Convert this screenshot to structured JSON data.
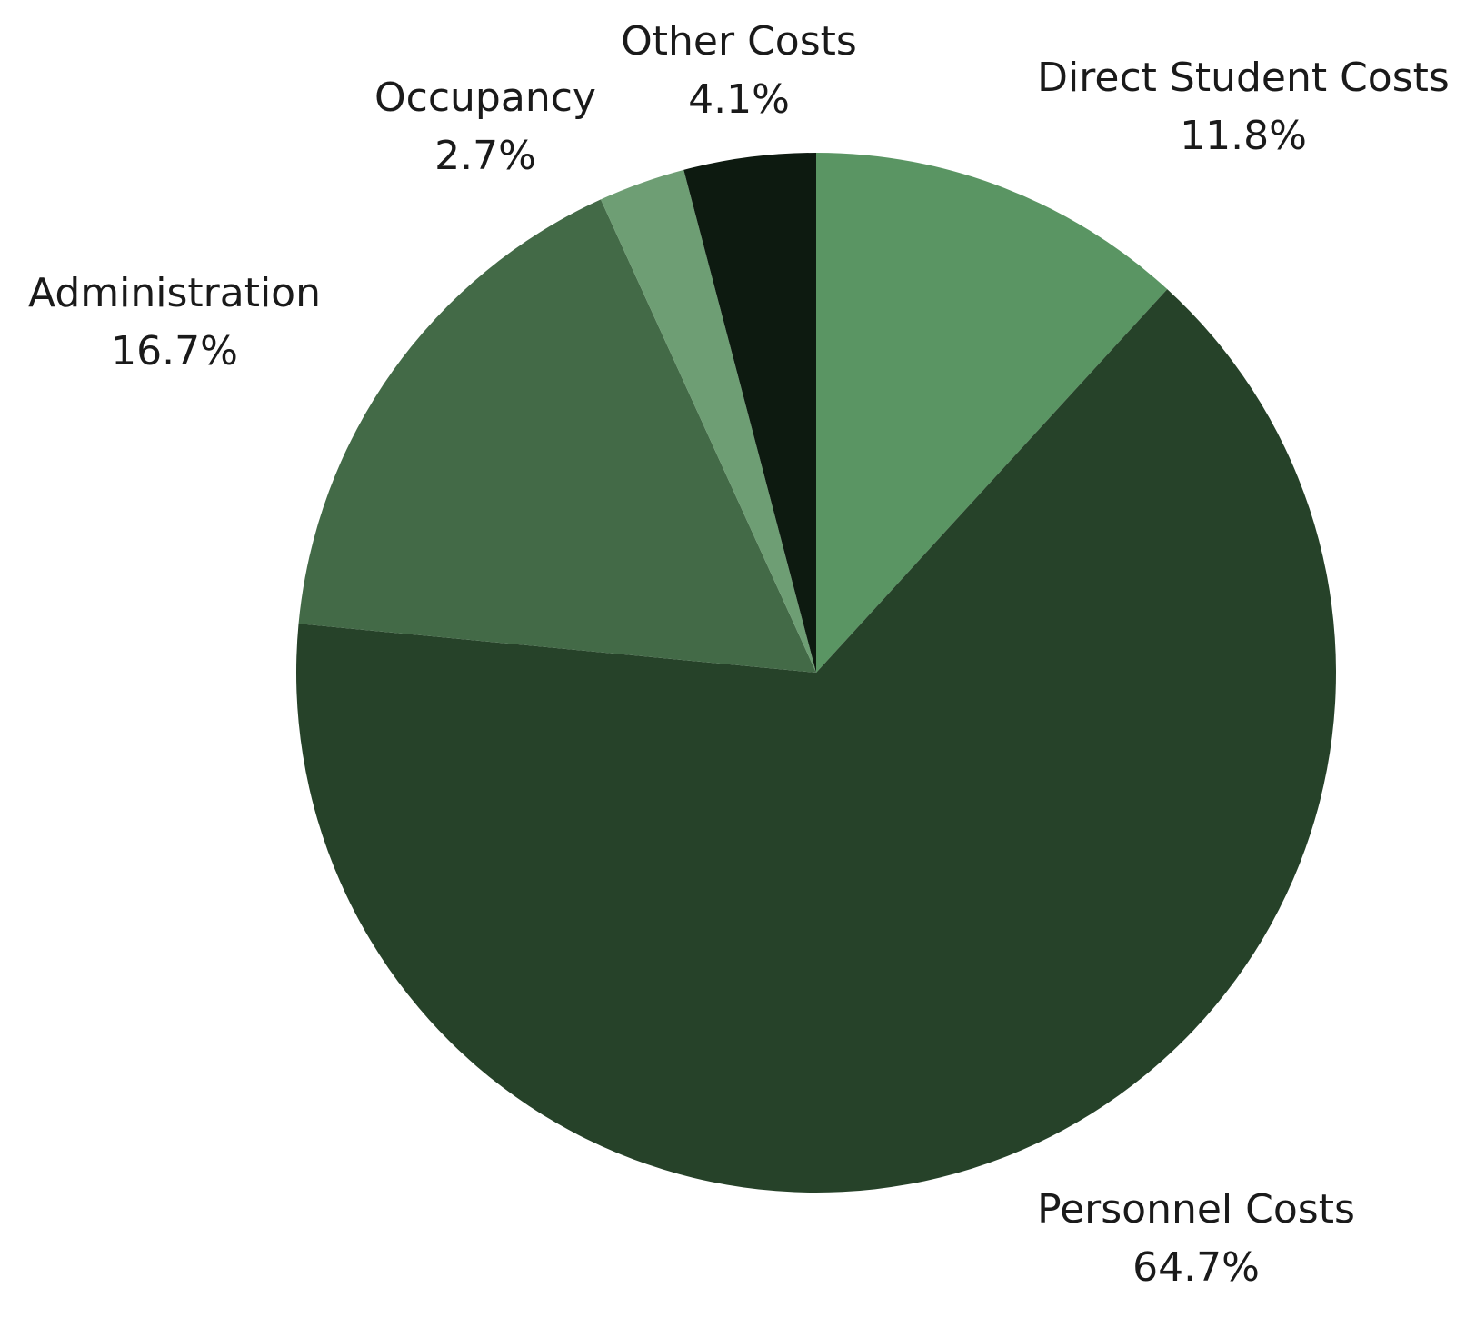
{
  "chart_data": {
    "type": "pie",
    "categories": [
      "Direct Student Costs",
      "Personnel Costs",
      "Administration",
      "Occupancy",
      "Other Costs"
    ],
    "values": [
      11.8,
      64.7,
      16.7,
      2.7,
      4.1
    ],
    "value_labels": [
      "11.8%",
      "64.7%",
      "16.7%",
      "2.7%",
      "4.1%"
    ],
    "colors": [
      "#5a9563",
      "#264229",
      "#436a47",
      "#6e9e74",
      "#0d1a10"
    ]
  }
}
